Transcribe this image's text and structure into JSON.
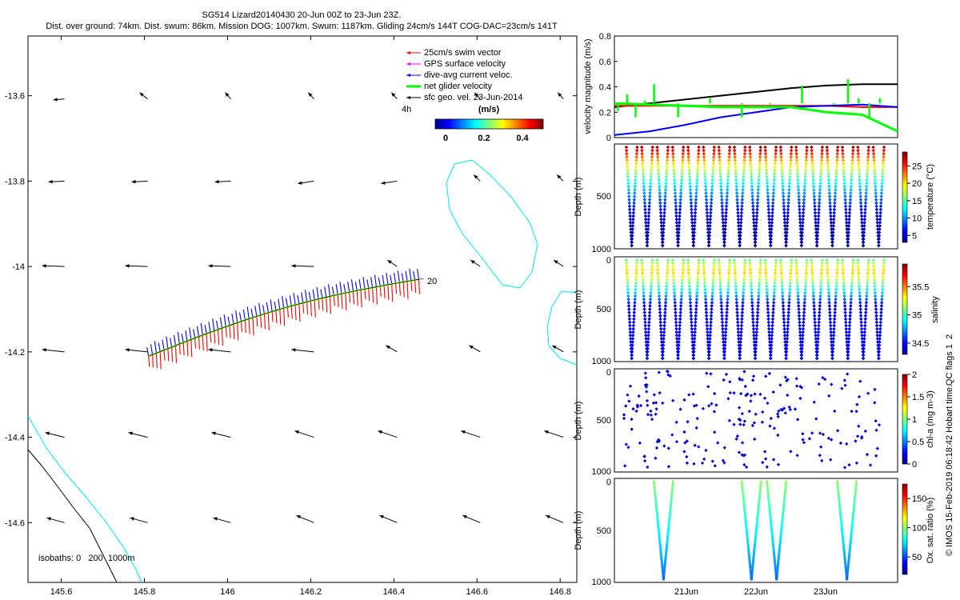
{
  "header": {
    "title_line1": "SG514 Lizard20140430 20-Jun 00Z to 23-Jun 23Z.",
    "title_line2": "Dist. over ground: 74km. Dist. swum: 86km. Mission DOG: 1007km. Swum: 1187km. Gliding 24cm/s 144T COG-DAC=23cm/s 141T"
  },
  "map": {
    "x_ticks": [
      "145.6",
      "145.8",
      "146",
      "146.2",
      "146.4",
      "146.6",
      "146.8"
    ],
    "y_ticks": [
      "-13.6",
      "-13.8",
      "-14",
      "-14.2",
      "-14.4",
      "-14.6"
    ],
    "legend": [
      {
        "label": "25cm/s swim vector",
        "color": "#ff0000"
      },
      {
        "label": "GPS surface velocity",
        "color": "#ff00ff"
      },
      {
        "label": "dive-avg current veloc.",
        "color": "#0000ff"
      },
      {
        "label": "net glider velocity",
        "color": "#00ff00"
      },
      {
        "label": "sfc geo. vel. 23-Jun-2014",
        "color": "#000000"
      }
    ],
    "legend_extra": "4h",
    "colorbar_unit": "(m/s)",
    "colorbar_ticks": [
      "0",
      "0.2",
      "0.4"
    ],
    "track_label": "20",
    "isobath_note": "isobaths: 0   200  1000m"
  },
  "panels": {
    "velocity": {
      "ylabel": "velocity magnitude (m/s)",
      "y_ticks": [
        "0",
        "0.2",
        "0.4",
        "0.6",
        "0.8"
      ]
    },
    "temperature": {
      "ylabel": "Depth (m)",
      "y_ticks": [
        "500",
        "1000"
      ],
      "cbar_label": "temperature (°C)",
      "cbar_ticks": [
        "5",
        "10",
        "15",
        "20",
        "25"
      ]
    },
    "salinity": {
      "ylabel": "Depth (m)",
      "y_ticks": [
        "0",
        "500",
        "1000"
      ],
      "cbar_label": "salinity",
      "cbar_ticks": [
        "34.5",
        "35",
        "35.5"
      ]
    },
    "chla": {
      "ylabel": "Depth (m)",
      "y_ticks": [
        "0",
        "500",
        "1000"
      ],
      "cbar_label": "chl-a (mg m-3)",
      "cbar_ticks": [
        "0",
        "0.5",
        "1",
        "1.5",
        "2"
      ]
    },
    "oxygen": {
      "ylabel": "Depth (m)",
      "y_ticks": [
        "0",
        "500",
        "1000"
      ],
      "cbar_label": "Ox. sat. ratio (%)",
      "cbar_ticks": [
        "50",
        "100",
        "150"
      ]
    },
    "x_ticks": [
      "21Jun",
      "22Jun",
      "23Jun"
    ],
    "qc_label": "QC flags 1  2",
    "credit": "© IMOS 15-Feb-2019 06:18:42 Hobart time."
  },
  "chart_data": [
    {
      "type": "scatter",
      "title": "SG514 Lizard20140430 20-Jun 00Z to 23-Jun 23Z.",
      "xlim": [
        145.52,
        146.84
      ],
      "ylim": [
        -14.74,
        -13.46
      ],
      "x_ticks": [
        145.6,
        145.8,
        146.0,
        146.2,
        146.4,
        146.6,
        146.8
      ],
      "y_ticks": [
        -13.6,
        -13.8,
        -14.0,
        -14.2,
        -14.4,
        -14.6
      ],
      "track": {
        "start": [
          145.81,
          -14.21
        ],
        "end": [
          146.46,
          -14.03
        ]
      },
      "series": [
        {
          "name": "25cm/s swim vector",
          "color": "#ff0000"
        },
        {
          "name": "GPS surface velocity",
          "color": "#ff00ff"
        },
        {
          "name": "dive-avg current veloc.",
          "color": "#0000ff"
        },
        {
          "name": "net glider velocity",
          "color": "#00ff00"
        },
        {
          "name": "sfc geo. vel. 23-Jun-2014",
          "color": "#000000"
        }
      ],
      "colorbar": {
        "range": [
          0,
          0.5
        ],
        "ticks": [
          0,
          0.2,
          0.4
        ],
        "unit": "(m/s)"
      }
    },
    {
      "type": "line",
      "ylabel": "velocity magnitude (m/s)",
      "ylim": [
        0,
        0.8
      ],
      "x": [
        0,
        0.5,
        1,
        1.5,
        2,
        2.5,
        3,
        3.5,
        4
      ],
      "series": [
        {
          "color": "#000000",
          "values": [
            0.24,
            0.27,
            0.3,
            0.33,
            0.36,
            0.39,
            0.41,
            0.42,
            0.42
          ]
        },
        {
          "color": "#ff0000",
          "values": [
            0.25,
            0.25,
            0.25,
            0.25,
            0.25,
            0.25,
            0.25,
            0.24,
            0.24
          ]
        },
        {
          "color": "#0000ff",
          "values": [
            0.02,
            0.05,
            0.1,
            0.16,
            0.2,
            0.24,
            0.25,
            0.26,
            0.24
          ]
        },
        {
          "color": "#00ff00",
          "values": [
            0.27,
            0.26,
            0.25,
            0.24,
            0.24,
            0.24,
            0.2,
            0.18,
            0.05
          ]
        }
      ]
    },
    {
      "type": "scatter",
      "ylabel": "Depth (m)",
      "colorbar_label": "temperature (°C)",
      "ylim": [
        1000,
        0
      ],
      "color_range": [
        3,
        29
      ],
      "dives": 17,
      "surface_value": 28,
      "bottom_value": 4
    },
    {
      "type": "scatter",
      "ylabel": "Depth (m)",
      "colorbar_label": "salinity",
      "ylim": [
        1000,
        0
      ],
      "color_range": [
        34.3,
        35.9
      ],
      "dives": 17,
      "surface_value": 35.4,
      "bottom_value": 34.5
    },
    {
      "type": "scatter",
      "ylabel": "Depth (m)",
      "colorbar_label": "chl-a (mg m-3)",
      "ylim": [
        1000,
        0
      ],
      "color_range": [
        0,
        2
      ],
      "dives": 17,
      "value": 0.05
    },
    {
      "type": "scatter",
      "ylabel": "Depth (m)",
      "colorbar_label": "Ox. sat. ratio (%)",
      "ylim": [
        1000,
        0
      ],
      "color_range": [
        20,
        175
      ],
      "dives": 4,
      "surface_value": 100,
      "bottom_value": 55
    }
  ]
}
